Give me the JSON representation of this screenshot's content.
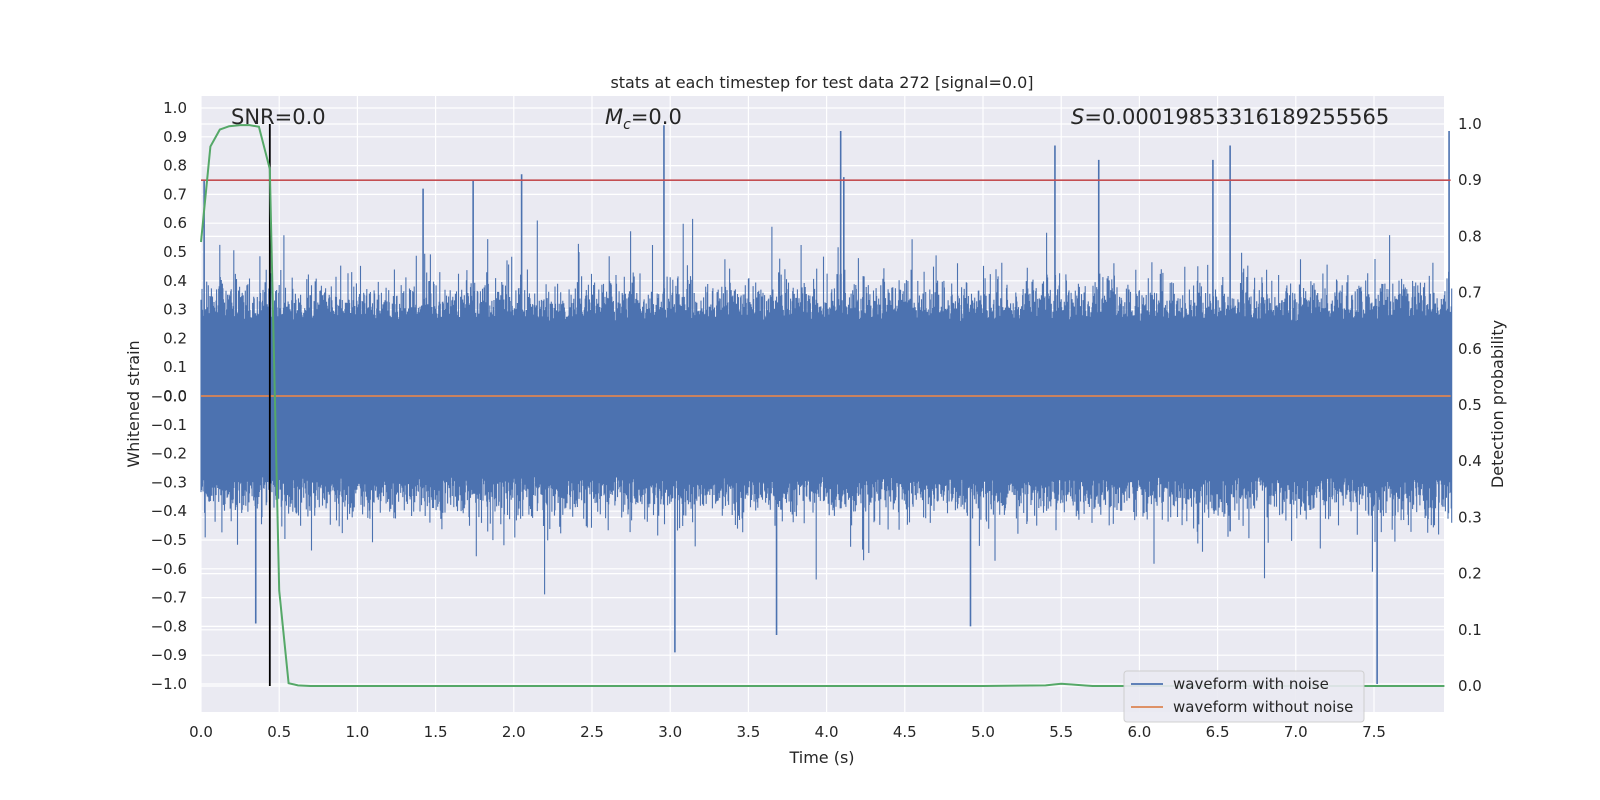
{
  "chart_data": {
    "type": "line",
    "title": "stats at each timestep for test data 272 [signal=0.0]",
    "xlabel": "Time (s)",
    "ylabel": "Whitened strain",
    "ylabel_right": "Detection probability",
    "xlim": [
      0.0,
      8.0
    ],
    "ylim": [
      -1.09,
      1.04
    ],
    "ylim_right": [
      -0.045,
      1.045
    ],
    "x_ticks": [
      "0.0",
      "0.5",
      "1.0",
      "1.5",
      "2.0",
      "2.5",
      "3.0",
      "3.5",
      "4.0",
      "4.5",
      "5.0",
      "5.5",
      "6.0",
      "6.5",
      "7.0",
      "7.5"
    ],
    "y_ticks": [
      "1.0",
      "0.9",
      "0.8",
      "0.7",
      "0.6",
      "0.5",
      "0.4",
      "0.3",
      "0.2",
      "0.1",
      "0.0",
      "-0.0",
      "-0.1",
      "-0.2",
      "-0.3",
      "-0.4",
      "-0.5",
      "-0.6",
      "-0.7",
      "-0.8",
      "-0.9",
      "-1.0"
    ],
    "y_right_ticks": [
      "1.0",
      "0.9",
      "0.8",
      "0.7",
      "0.6",
      "0.5",
      "0.4",
      "0.3",
      "0.2",
      "0.1",
      "0.0"
    ],
    "annotations": {
      "snr": "SNR=0.0",
      "mc_symbol": "M",
      "mc_sub": "c",
      "mc_value": "=0.0",
      "s_symbol": "S",
      "s_value": "=0.00019853316189255565"
    },
    "threshold_probability": 0.9,
    "marker_time": 0.44,
    "series": [
      {
        "name": "waveform with noise",
        "color": "#4c72b0",
        "noise_envelope": {
          "typical_high": 0.38,
          "typical_low": -0.4
        },
        "spikes": [
          {
            "x": 0.02,
            "y": 0.75
          },
          {
            "x": 0.35,
            "y": -0.79
          },
          {
            "x": 0.44,
            "y": 0.54
          },
          {
            "x": 1.42,
            "y": 0.72
          },
          {
            "x": 1.74,
            "y": 0.75
          },
          {
            "x": 2.05,
            "y": 0.77
          },
          {
            "x": 2.96,
            "y": 0.94
          },
          {
            "x": 3.03,
            "y": -0.89
          },
          {
            "x": 3.68,
            "y": -0.83
          },
          {
            "x": 4.09,
            "y": 0.92
          },
          {
            "x": 4.11,
            "y": 0.76
          },
          {
            "x": 4.92,
            "y": -0.8
          },
          {
            "x": 5.46,
            "y": 0.87
          },
          {
            "x": 5.74,
            "y": 0.82
          },
          {
            "x": 6.47,
            "y": 0.82
          },
          {
            "x": 6.58,
            "y": 0.87
          },
          {
            "x": 6.58,
            "y": -0.47
          },
          {
            "x": 7.52,
            "y": -1.0
          },
          {
            "x": 7.98,
            "y": 0.92
          }
        ]
      },
      {
        "name": "waveform without noise",
        "color": "#dd8452",
        "x": [
          0.0,
          8.0
        ],
        "y": [
          0.0,
          0.0
        ]
      },
      {
        "name": "detection probability",
        "color": "#55a868",
        "axis": "right",
        "x": [
          0.0,
          0.06,
          0.12,
          0.18,
          0.25,
          0.31,
          0.37,
          0.44,
          0.5,
          0.56,
          0.62,
          0.7,
          1.0,
          2.0,
          3.0,
          4.0,
          5.0,
          5.4,
          5.5,
          5.6,
          5.7,
          6.0,
          7.0,
          7.95
        ],
        "y": [
          0.79,
          0.96,
          0.99,
          0.996,
          0.998,
          0.998,
          0.995,
          0.92,
          0.17,
          0.005,
          0.001,
          0.0,
          0.0,
          0.0,
          0.0,
          0.0,
          0.0,
          0.001,
          0.004,
          0.002,
          0.0,
          0.0,
          0.0,
          0.0
        ]
      },
      {
        "name": "threshold",
        "color": "#c44e52",
        "axis": "right",
        "x": [
          0.0,
          8.0
        ],
        "y": [
          0.9,
          0.9
        ]
      }
    ],
    "legend": {
      "position": "lower-right",
      "entries": [
        {
          "label": "waveform with noise",
          "color": "#4c72b0"
        },
        {
          "label": "waveform without noise",
          "color": "#dd8452"
        }
      ]
    }
  }
}
